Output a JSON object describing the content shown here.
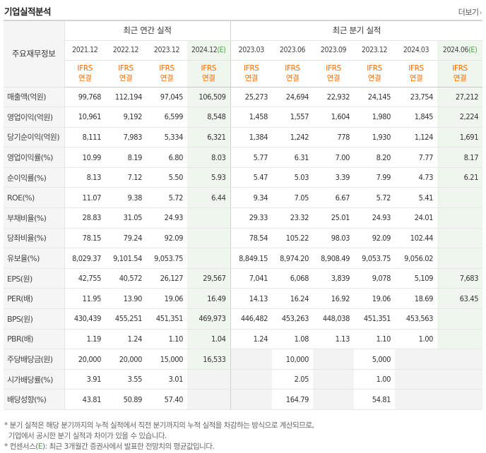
{
  "section_title": "기업실적분석",
  "more_label": "더보기",
  "row_header_label": "주요재무정보",
  "annual_group_label": "최근 연간 실적",
  "quarterly_group_label": "최근 분기 실적",
  "annual_periods": [
    "2021.12",
    "2022.12",
    "2023.12",
    "2024.12"
  ],
  "annual_estimate_suffix": "(E)",
  "quarterly_periods": [
    "2023.03",
    "2023.06",
    "2023.09",
    "2023.12",
    "2024.03",
    "2024.06"
  ],
  "quarterly_estimate_suffix": "(E)",
  "ifrs_label": "IFRS",
  "consolidated_label": "연결",
  "rows": [
    {
      "label": "매출액(억원)",
      "group_start": true,
      "values": [
        "99,768",
        "112,194",
        "97,045",
        "106,509",
        "25,273",
        "24,694",
        "22,932",
        "24,145",
        "23,754",
        "27,212"
      ]
    },
    {
      "label": "영업이익(억원)",
      "group_start": false,
      "values": [
        "10,961",
        "9,192",
        "6,599",
        "8,548",
        "1,458",
        "1,557",
        "1,604",
        "1,980",
        "1,845",
        "2,224"
      ]
    },
    {
      "label": "당기순이익(억원)",
      "group_start": false,
      "values": [
        "8,111",
        "7,983",
        "5,334",
        "6,321",
        "1,384",
        "1,242",
        "778",
        "1,930",
        "1,124",
        "1,691"
      ]
    },
    {
      "label": "영업이익률(%)",
      "group_start": true,
      "values": [
        "10.99",
        "8.19",
        "6.80",
        "8.03",
        "5.77",
        "6.31",
        "7.00",
        "8.20",
        "7.77",
        "8.17"
      ]
    },
    {
      "label": "순이익률(%)",
      "group_start": false,
      "values": [
        "8.13",
        "7.12",
        "5.50",
        "5.93",
        "5.47",
        "5.03",
        "3.39",
        "7.99",
        "4.73",
        "6.21"
      ]
    },
    {
      "label": "ROE(%)",
      "group_start": false,
      "values": [
        "11.07",
        "9.38",
        "5.72",
        "6.44",
        "9.34",
        "7.05",
        "6.67",
        "5.72",
        "5.41",
        ""
      ]
    },
    {
      "label": "부채비율(%)",
      "group_start": true,
      "values": [
        "28.83",
        "31.05",
        "24.93",
        "",
        "29.33",
        "23.32",
        "25.01",
        "24.93",
        "24.01",
        ""
      ]
    },
    {
      "label": "당좌비율(%)",
      "group_start": false,
      "values": [
        "78.15",
        "79.24",
        "92.09",
        "",
        "78.54",
        "105.22",
        "98.03",
        "92.09",
        "102.44",
        ""
      ]
    },
    {
      "label": "유보율(%)",
      "group_start": false,
      "values": [
        "8,029.37",
        "9,101.54",
        "9,053.75",
        "",
        "8,849.15",
        "8,974.20",
        "8,908.49",
        "9,053.75",
        "9,056.02",
        ""
      ]
    },
    {
      "label": "EPS(원)",
      "group_start": true,
      "values": [
        "42,755",
        "40,572",
        "26,127",
        "29,567",
        "7,041",
        "6,068",
        "3,839",
        "9,078",
        "5,109",
        "7,683"
      ]
    },
    {
      "label": "PER(배)",
      "group_start": false,
      "values": [
        "11.95",
        "13.90",
        "19.06",
        "16.49",
        "14.13",
        "16.24",
        "16.92",
        "19.06",
        "18.69",
        "63.45"
      ]
    },
    {
      "label": "BPS(원)",
      "group_start": false,
      "values": [
        "430,439",
        "455,251",
        "451,351",
        "469,973",
        "446,482",
        "453,263",
        "448,038",
        "451,351",
        "453,563",
        ""
      ]
    },
    {
      "label": "PBR(배)",
      "group_start": false,
      "values": [
        "1.19",
        "1.24",
        "1.10",
        "1.04",
        "1.24",
        "1.08",
        "1.13",
        "1.10",
        "1.00",
        ""
      ]
    },
    {
      "label": "주당배당금(원)",
      "group_start": true,
      "values": [
        "20,000",
        "20,000",
        "15,000",
        "16,533",
        "",
        "10,000",
        "",
        "5,000",
        "",
        ""
      ]
    },
    {
      "label": "시가배당률(%)",
      "group_start": false,
      "values": [
        "3.91",
        "3.55",
        "3.01",
        "",
        "",
        "2.05",
        "",
        "1.00",
        "",
        ""
      ]
    },
    {
      "label": "배당성향(%)",
      "group_start": false,
      "values": [
        "43.81",
        "50.89",
        "57.40",
        "",
        "",
        "164.79",
        "",
        "54.81",
        "",
        ""
      ]
    }
  ],
  "empty_shade_cells": [
    [
      13,
      4
    ],
    [
      13,
      6
    ],
    [
      13,
      8
    ],
    [
      13,
      9
    ],
    [
      14,
      3
    ],
    [
      14,
      4
    ],
    [
      14,
      6
    ],
    [
      14,
      8
    ],
    [
      14,
      9
    ],
    [
      15,
      3
    ],
    [
      15,
      4
    ],
    [
      15,
      6
    ],
    [
      15,
      8
    ],
    [
      15,
      9
    ]
  ],
  "notes": {
    "line1": "* 분기 실적은 해당 분기까지의 누적 실적에서 직전 분기까지의 누적 실적을 차감하는 방식으로 계산되므로,",
    "line2": "  기업에서 공시한 분기 실적과 차이가 있을 수 있습니다.",
    "line3_prefix": "* 컨센서스(",
    "line3_e": "E",
    "line3_suffix": "): 최근 3개월간 증권사에서 발표한 전망치의 평균값입니다."
  },
  "colors": {
    "ifrs": "#ff6a00",
    "estimate": "#4aa545",
    "estimate_bg": "#eef6ee",
    "label_bg": "#f5f5f5"
  }
}
